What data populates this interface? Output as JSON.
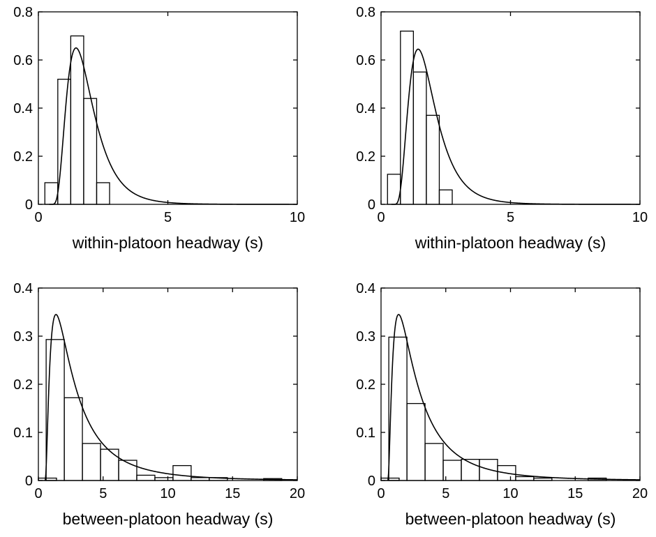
{
  "chart_data": [
    {
      "type": "bar",
      "xlabel": "within-platoon headway (s)",
      "ylabel": "",
      "xlim": [
        0,
        10
      ],
      "ylim": [
        0,
        0.8
      ],
      "xticks": [
        "0",
        "5",
        "10"
      ],
      "yticks": [
        "0",
        "0.2",
        "0.4",
        "0.6",
        "0.8"
      ],
      "bin_width": 0.5,
      "bins": [
        {
          "x0": 0.25,
          "value": 0.09
        },
        {
          "x0": 0.75,
          "value": 0.52
        },
        {
          "x0": 1.25,
          "value": 0.7
        },
        {
          "x0": 1.75,
          "value": 0.44
        },
        {
          "x0": 2.25,
          "value": 0.09
        }
      ],
      "curve": {
        "kind": "lognormal",
        "min_x": 0.42,
        "mu": 0.283,
        "sigma": 0.5,
        "peak_x": 1.2,
        "peak_y": 0.65
      }
    },
    {
      "type": "bar",
      "xlabel": "within-platoon headway (s)",
      "ylabel": "",
      "xlim": [
        0,
        10
      ],
      "ylim": [
        0,
        0.8
      ],
      "xticks": [
        "0",
        "5",
        "10"
      ],
      "yticks": [
        "0",
        "0.2",
        "0.4",
        "0.6",
        "0.8"
      ],
      "bin_width": 0.5,
      "bins": [
        {
          "x0": 0.25,
          "value": 0.125
        },
        {
          "x0": 0.75,
          "value": 0.72
        },
        {
          "x0": 1.25,
          "value": 0.55
        },
        {
          "x0": 1.75,
          "value": 0.37
        },
        {
          "x0": 2.25,
          "value": 0.06
        }
      ],
      "curve": {
        "kind": "lognormal",
        "min_x": 0.4,
        "mu": 0.283,
        "sigma": 0.5,
        "peak_x": 1.2,
        "peak_y": 0.645
      }
    },
    {
      "type": "bar",
      "xlabel": "between-platoon headway (s)",
      "ylabel": "",
      "xlim": [
        0,
        20
      ],
      "ylim": [
        0,
        0.4
      ],
      "xticks": [
        "0",
        "5",
        "10",
        "15",
        "20"
      ],
      "yticks": [
        "0",
        "0.1",
        "0.2",
        "0.3",
        "0.4"
      ],
      "bin_width": 1.4,
      "bins": [
        {
          "x0": 0.0,
          "value": 0.005
        },
        {
          "x0": 0.6,
          "value": 0.293
        },
        {
          "x0": 2.0,
          "value": 0.172
        },
        {
          "x0": 3.4,
          "value": 0.077
        },
        {
          "x0": 4.8,
          "value": 0.065
        },
        {
          "x0": 6.2,
          "value": 0.042
        },
        {
          "x0": 7.6,
          "value": 0.011
        },
        {
          "x0": 9.0,
          "value": 0.006
        },
        {
          "x0": 10.4,
          "value": 0.031
        },
        {
          "x0": 11.8,
          "value": 0.006
        },
        {
          "x0": 13.2,
          "value": 0.006
        },
        {
          "x0": 17.4,
          "value": 0.004
        }
      ],
      "curve": {
        "kind": "lognormal",
        "min_x": 0.5,
        "mu": 0.75,
        "sigma": 0.95,
        "peak_x": 1.2,
        "peak_y": 0.345
      }
    },
    {
      "type": "bar",
      "xlabel": "between-platoon headway (s)",
      "ylabel": "",
      "xlim": [
        0,
        20
      ],
      "ylim": [
        0,
        0.4
      ],
      "xticks": [
        "0",
        "5",
        "10",
        "15",
        "20"
      ],
      "yticks": [
        "0",
        "0.1",
        "0.2",
        "0.3",
        "0.4"
      ],
      "bin_width": 1.4,
      "bins": [
        {
          "x0": 0.0,
          "value": 0.005
        },
        {
          "x0": 0.6,
          "value": 0.298
        },
        {
          "x0": 2.0,
          "value": 0.16
        },
        {
          "x0": 3.4,
          "value": 0.077
        },
        {
          "x0": 4.8,
          "value": 0.042
        },
        {
          "x0": 6.2,
          "value": 0.044
        },
        {
          "x0": 7.6,
          "value": 0.044
        },
        {
          "x0": 9.0,
          "value": 0.031
        },
        {
          "x0": 10.4,
          "value": 0.008
        },
        {
          "x0": 11.8,
          "value": 0.005
        },
        {
          "x0": 16.0,
          "value": 0.005
        }
      ],
      "curve": {
        "kind": "lognormal",
        "min_x": 0.5,
        "mu": 0.75,
        "sigma": 0.95,
        "peak_x": 1.2,
        "peak_y": 0.345
      }
    }
  ]
}
